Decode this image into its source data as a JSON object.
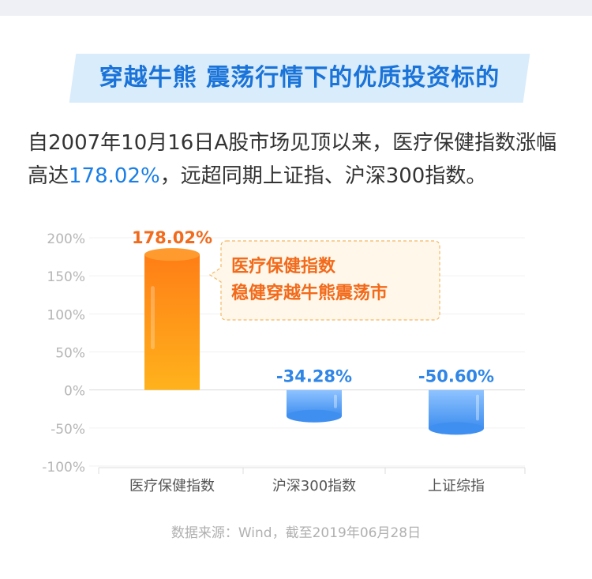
{
  "title": "穿越牛熊 震荡行情下的优质投资标的",
  "intro": {
    "part1": "自2007年10月16日A股市场见顶以来，医疗保健指数涨幅高达",
    "highlight": "178.02%",
    "part2": "，远超同期上证指、沪深300指数。"
  },
  "callout": {
    "line1": "医疗保健指数",
    "line2": "稳健穿越牛熊震荡市"
  },
  "source": "数据来源：Wind，截至2019年06月28日",
  "colors": {
    "title_text": "#1a73d8",
    "title_bg": "#d9ecfb",
    "orange_top": "#ff7e16",
    "orange_bottom": "#ffb21c",
    "blue": "#4b9af0",
    "orange_label": "#f26a1b",
    "blue_label": "#2f86e6"
  },
  "chart_data": {
    "type": "bar",
    "categories": [
      "医疗保健指数",
      "沪深300指数",
      "上证综指"
    ],
    "values": [
      178.02,
      -34.28,
      -50.6
    ],
    "value_labels": [
      "178.02%",
      "-34.28%",
      "-50.60%"
    ],
    "ylim": [
      -100,
      200
    ],
    "yticks": [
      200,
      150,
      100,
      50,
      0,
      -50,
      -100
    ],
    "ytick_labels": [
      "200%",
      "150%",
      "100%",
      "50%",
      "0%",
      "-50%",
      "-100%"
    ],
    "grid": true
  }
}
